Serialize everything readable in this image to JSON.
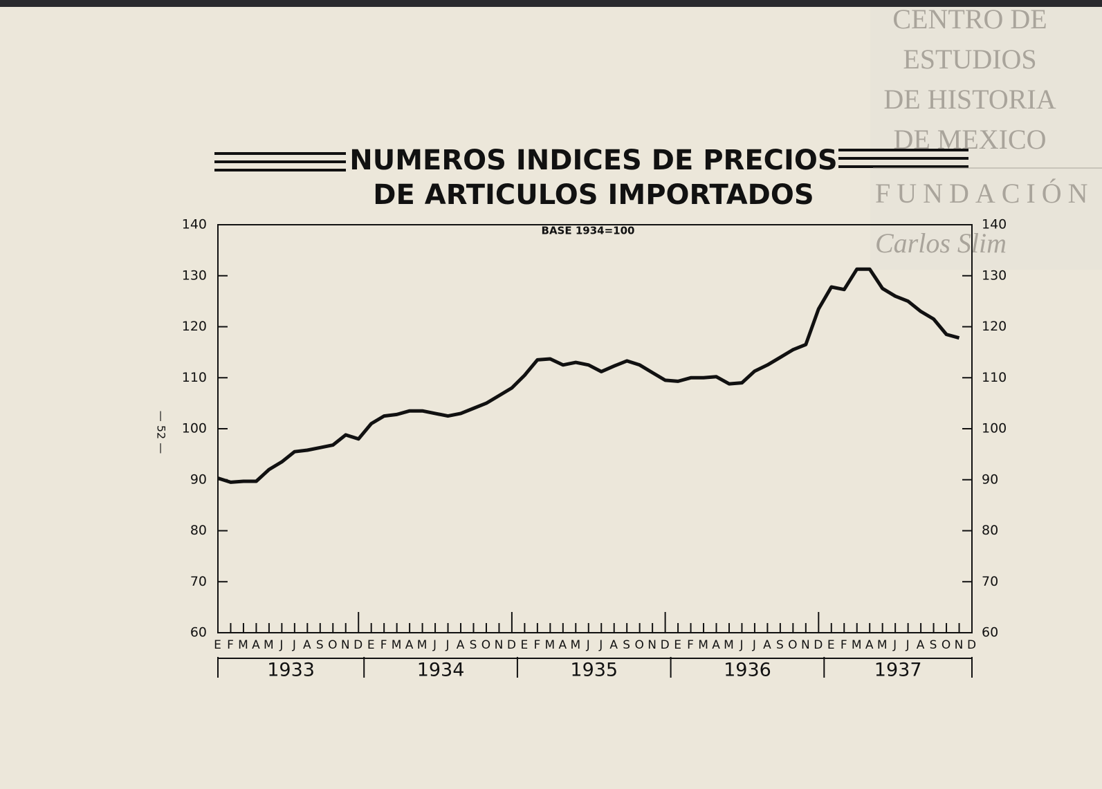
{
  "chart_data": {
    "type": "line",
    "title": "NUMEROS INDICES DE PRECIOS",
    "title_line2": "DE ARTICULOS IMPORTADOS",
    "subtitle": "BASE 1934=100",
    "categories": [
      "E",
      "F",
      "M",
      "A",
      "M",
      "J",
      "J",
      "A",
      "S",
      "O",
      "N",
      "D",
      "E",
      "F",
      "M",
      "A",
      "M",
      "J",
      "J",
      "A",
      "S",
      "O",
      "N",
      "D",
      "E",
      "F",
      "M",
      "A",
      "M",
      "J",
      "J",
      "A",
      "S",
      "O",
      "N",
      "D",
      "E",
      "F",
      "M",
      "A",
      "M",
      "J",
      "J",
      "A",
      "S",
      "O",
      "N",
      "D",
      "E",
      "F",
      "M",
      "A",
      "M",
      "J",
      "J",
      "A",
      "S",
      "O",
      "N",
      "D"
    ],
    "years": [
      "1933",
      "1934",
      "1935",
      "1936",
      "1937"
    ],
    "values": [
      90.3,
      89.5,
      89.7,
      89.7,
      92,
      93.5,
      95.5,
      95.8,
      96.3,
      96.8,
      98.8,
      98,
      101,
      102.5,
      102.8,
      103.5,
      103.5,
      103,
      102.5,
      103,
      104,
      105,
      106.5,
      108,
      110.5,
      113.5,
      113.7,
      112.5,
      113,
      112.5,
      111.2,
      112.3,
      113.3,
      112.5,
      111,
      109.5,
      109.3,
      110,
      110,
      110.2,
      108.8,
      109,
      111.3,
      112.5,
      114,
      115.5,
      116.5,
      123.5,
      127.8,
      127.3,
      131.3,
      131.3,
      127.5,
      126,
      125,
      123,
      121.5,
      118.5,
      117.8,
      null
    ],
    "color": "#111111",
    "ylim": [
      60,
      140
    ],
    "yticks": [
      60,
      70,
      80,
      90,
      100,
      110,
      120,
      130,
      140
    ],
    "y2lim": [
      60,
      140
    ],
    "y2ticks": [
      60,
      70,
      80,
      90,
      100,
      110,
      120,
      130,
      140
    ],
    "grid": false
  },
  "page_number": "— 52 —",
  "watermark": {
    "lines": [
      "CENTRO DE",
      "ESTUDIOS",
      "DE HISTORIA",
      "DE MEXICO"
    ],
    "foundation": "FUNDACIÓN",
    "signature": "Carlos Slim"
  }
}
